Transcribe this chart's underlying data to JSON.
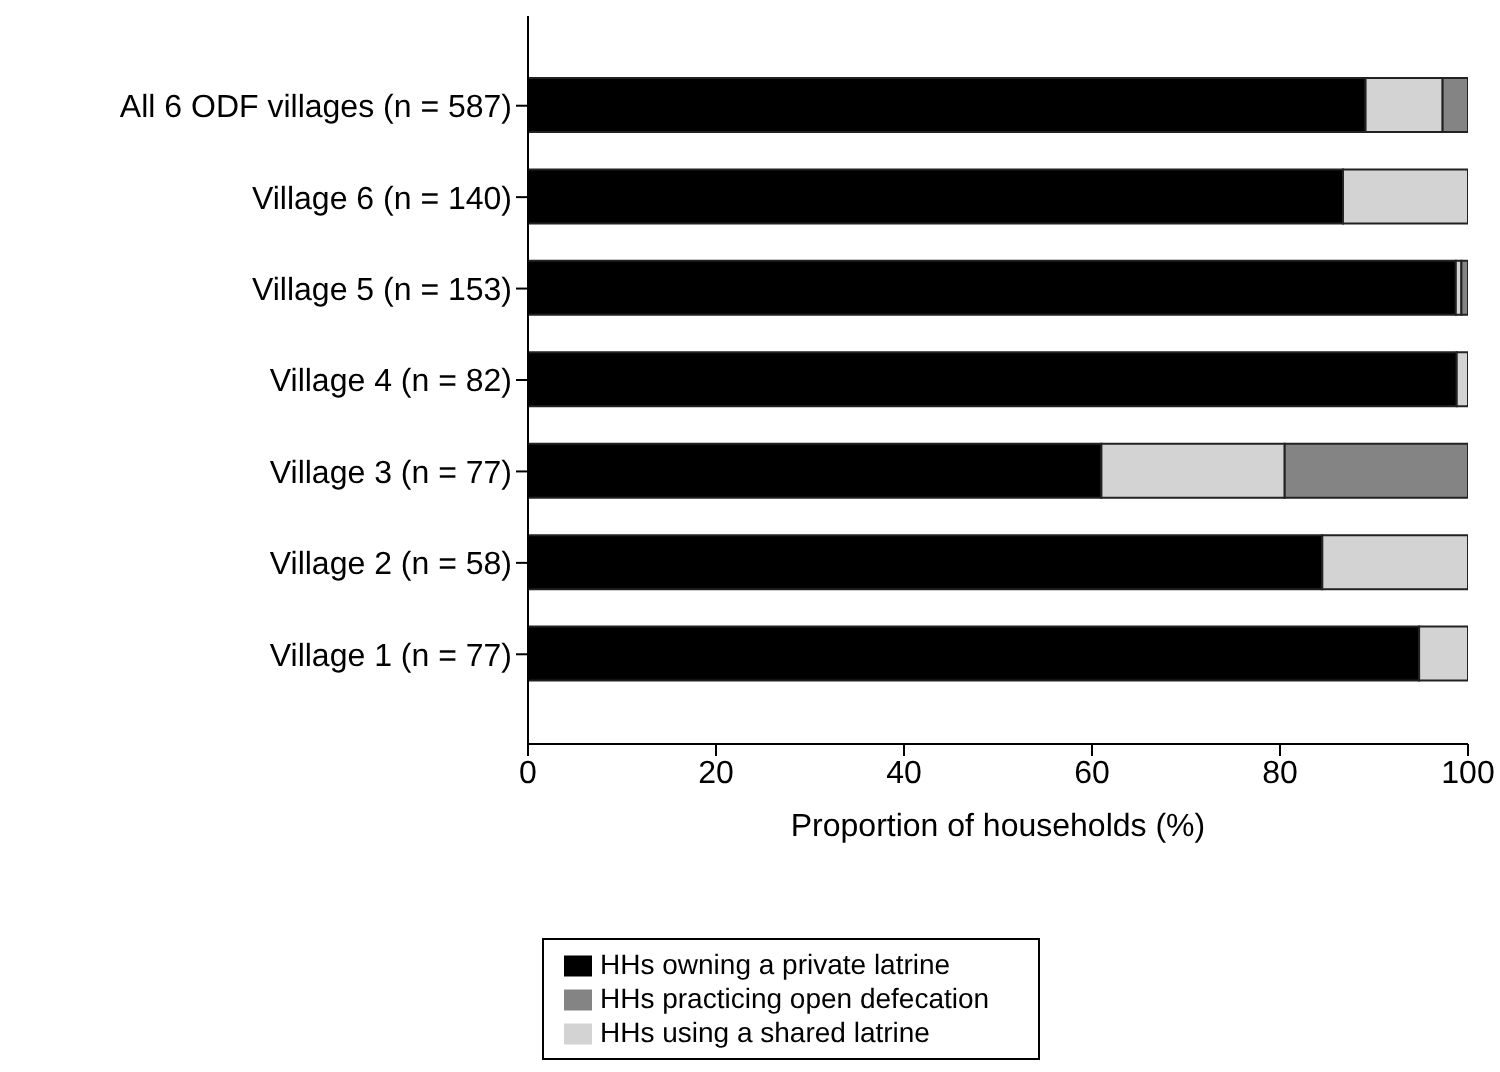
{
  "chart_data": {
    "type": "bar",
    "orientation": "horizontal",
    "stacked": true,
    "xlabel": "Proportion of households (%)",
    "categories": [
      "All 6 ODF villages (n = 587)",
      "Village 6 (n = 140)",
      "Village 5 (n = 153)",
      "Village 4 (n = 82)",
      "Village 3 (n = 77)",
      "Village 2 (n = 58)",
      "Village 1 (n = 77)"
    ],
    "series": [
      {
        "name": "HHs owning a private latrine",
        "color": "#000000",
        "values": [
          89.1,
          86.7,
          98.7,
          98.8,
          61.0,
          84.5,
          94.8
        ]
      },
      {
        "name": "HHs using a shared latrine",
        "color": "#d3d3d3",
        "values": [
          8.2,
          13.3,
          0.6,
          1.2,
          19.5,
          15.5,
          5.2
        ]
      },
      {
        "name": "HHs practicing open defecation",
        "color": "#848484",
        "values": [
          2.7,
          0,
          0.7,
          0,
          19.5,
          0,
          0
        ]
      }
    ],
    "xlim": [
      0,
      100
    ],
    "xticks": [
      0,
      20,
      40,
      60,
      80,
      100
    ],
    "grid": false,
    "legend": "bottom"
  }
}
